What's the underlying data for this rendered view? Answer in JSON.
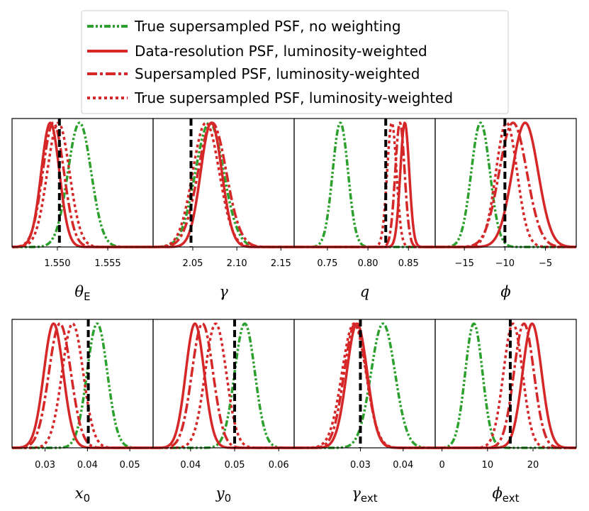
{
  "legend": {
    "items": [
      {
        "label": "True supersampled PSF, no weighting",
        "color": "#2ca02c",
        "style": "dashdotdot"
      },
      {
        "label": "Data-resolution PSF, luminosity-weighted",
        "color": "#d62728",
        "style": "solid"
      },
      {
        "label": "Supersampled PSF, luminosity-weighted",
        "color": "#d62728",
        "style": "dashdot"
      },
      {
        "label": "True supersampled PSF, luminosity-weighted",
        "color": "#d62728",
        "style": "dotted"
      }
    ]
  },
  "chart_data": [
    {
      "type": "line",
      "xlabel": "θ",
      "xlabel_sub": "E",
      "xlim": [
        1.5455,
        1.5595
      ],
      "ticks": [
        1.55,
        1.555
      ],
      "tick_labels": [
        "1.550",
        "1.555"
      ],
      "truth": 1.5502,
      "series": [
        {
          "style": "green_dashdotdot",
          "mean": 1.5522,
          "sd": 0.00115
        },
        {
          "style": "red_solid",
          "mean": 1.5493,
          "sd": 0.0009
        },
        {
          "style": "red_dashdot",
          "mean": 1.5496,
          "sd": 0.00105
        },
        {
          "style": "red_dotted",
          "mean": 1.5501,
          "sd": 0.0011
        }
      ]
    },
    {
      "type": "line",
      "xlabel": "γ",
      "xlabel_sub": "",
      "xlim": [
        2.005,
        2.165
      ],
      "ticks": [
        2.05,
        2.1,
        2.15
      ],
      "tick_labels": [
        "2.05",
        "2.10",
        "2.15"
      ],
      "truth": 2.048,
      "series": [
        {
          "style": "green_dashdotdot",
          "mean": 2.069,
          "sd": 0.016
        },
        {
          "style": "red_solid",
          "mean": 2.071,
          "sd": 0.012
        },
        {
          "style": "red_dashdot",
          "mean": 2.072,
          "sd": 0.016
        },
        {
          "style": "red_dotted",
          "mean": 2.065,
          "sd": 0.015
        }
      ]
    },
    {
      "type": "line",
      "xlabel": "q",
      "xlabel_sub": "",
      "xlim": [
        0.709,
        0.883
      ],
      "ticks": [
        0.75,
        0.8,
        0.85
      ],
      "tick_labels": [
        "0.75",
        "0.80",
        "0.85"
      ],
      "truth": 0.822,
      "series": [
        {
          "style": "green_dashdotdot",
          "mean": 0.766,
          "sd": 0.0095
        },
        {
          "style": "red_solid",
          "mean": 0.8455,
          "sd": 0.0055
        },
        {
          "style": "red_dashdot",
          "mean": 0.8395,
          "sd": 0.0058
        },
        {
          "style": "red_dotted",
          "mean": 0.8295,
          "sd": 0.0058
        }
      ]
    },
    {
      "type": "line",
      "xlabel": "ϕ",
      "xlabel_sub": "",
      "xlim": [
        -18.6,
        -1.2
      ],
      "ticks": [
        -15,
        -10,
        -5
      ],
      "tick_labels": [
        "−15",
        "−10",
        "−5"
      ],
      "truth": -10.0,
      "series": [
        {
          "style": "green_dashdotdot",
          "mean": -13.0,
          "sd": 1.15
        },
        {
          "style": "red_solid",
          "mean": -7.5,
          "sd": 1.6
        },
        {
          "style": "red_dashdot",
          "mean": -9.0,
          "sd": 1.7
        },
        {
          "style": "red_dotted",
          "mean": -9.8,
          "sd": 1.3
        }
      ]
    },
    {
      "type": "line",
      "xlabel": "x",
      "xlabel_sub": "0",
      "xlim": [
        0.0222,
        0.0555
      ],
      "ticks": [
        0.03,
        0.04,
        0.05
      ],
      "tick_labels": [
        "0.03",
        "0.04",
        "0.05"
      ],
      "truth": 0.0402,
      "series": [
        {
          "style": "green_dashdotdot",
          "mean": 0.0423,
          "sd": 0.0024
        },
        {
          "style": "red_solid",
          "mean": 0.032,
          "sd": 0.0023
        },
        {
          "style": "red_dashdot",
          "mean": 0.0335,
          "sd": 0.0026
        },
        {
          "style": "red_dotted",
          "mean": 0.0365,
          "sd": 0.0025
        }
      ]
    },
    {
      "type": "line",
      "xlabel": "y",
      "xlabel_sub": "0",
      "xlim": [
        0.0315,
        0.0635
      ],
      "ticks": [
        0.04,
        0.05,
        0.06
      ],
      "tick_labels": [
        "0.04",
        "0.05",
        "0.06"
      ],
      "truth": 0.05,
      "series": [
        {
          "style": "green_dashdotdot",
          "mean": 0.0523,
          "sd": 0.0023
        },
        {
          "style": "red_solid",
          "mean": 0.041,
          "sd": 0.0021
        },
        {
          "style": "red_dashdot",
          "mean": 0.0427,
          "sd": 0.0024
        },
        {
          "style": "red_dotted",
          "mean": 0.0457,
          "sd": 0.0024
        }
      ]
    },
    {
      "type": "line",
      "xlabel": "γ",
      "xlabel_sub": "ext",
      "xlim": [
        0.0145,
        0.0475
      ],
      "ticks": [
        0.03,
        0.04
      ],
      "tick_labels": [
        "0.03",
        "0.04"
      ],
      "truth": 0.03,
      "series": [
        {
          "style": "green_dashdotdot",
          "mean": 0.0353,
          "sd": 0.0028
        },
        {
          "style": "red_solid",
          "mean": 0.0292,
          "sd": 0.0024
        },
        {
          "style": "red_dashdot",
          "mean": 0.0288,
          "sd": 0.0026
        },
        {
          "style": "red_dotted",
          "mean": 0.0285,
          "sd": 0.0028
        }
      ]
    },
    {
      "type": "line",
      "xlabel": "ϕ",
      "xlabel_sub": "ext",
      "xlim": [
        -1.5,
        29.5
      ],
      "ticks": [
        0,
        10,
        20
      ],
      "tick_labels": [
        "0",
        "10",
        "20"
      ],
      "truth": 15.0,
      "series": [
        {
          "style": "green_dashdotdot",
          "mean": 7.0,
          "sd": 1.9
        },
        {
          "style": "red_solid",
          "mean": 19.8,
          "sd": 2.1
        },
        {
          "style": "red_dashdot",
          "mean": 18.0,
          "sd": 2.2
        },
        {
          "style": "red_dotted",
          "mean": 15.6,
          "sd": 2.1
        }
      ]
    }
  ]
}
